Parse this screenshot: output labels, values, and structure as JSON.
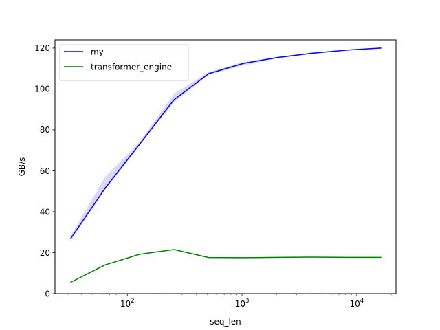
{
  "chart_data": {
    "type": "line",
    "title": "",
    "xlabel": "seq_len",
    "ylabel": "GB/s",
    "xscale": "log",
    "xlim": [
      23.4,
      22000
    ],
    "ylim": [
      0,
      124
    ],
    "x_ticks": [
      {
        "value": 100,
        "base": "10",
        "exp": "2"
      },
      {
        "value": 1000,
        "base": "10",
        "exp": "3"
      },
      {
        "value": 10000,
        "base": "10",
        "exp": "4"
      }
    ],
    "y_ticks": [
      0,
      20,
      40,
      60,
      80,
      100,
      120
    ],
    "grid": false,
    "legend": "top-left",
    "series": [
      {
        "name": "my",
        "color": "#0000ff",
        "band_color": "#0000ff",
        "x": [
          32,
          64,
          128,
          256,
          512,
          1024,
          2048,
          4096,
          8192,
          16384
        ],
        "y": [
          26.8,
          51.5,
          73.0,
          94.8,
          107.5,
          112.5,
          115.4,
          117.5,
          119.0,
          120.0
        ],
        "y_lower": [
          25.6,
          50.5,
          72.5,
          93.5,
          107.0,
          111.5,
          115.0,
          117.2,
          118.8,
          119.8
        ],
        "y_upper": [
          28.2,
          57.0,
          74.0,
          97.8,
          108.2,
          113.2,
          115.8,
          117.8,
          119.2,
          120.2
        ]
      },
      {
        "name": "transformer_engine",
        "color": "#008000",
        "x": [
          32,
          64,
          128,
          256,
          512,
          1024,
          2048,
          4096,
          8192,
          16384
        ],
        "y": [
          5.5,
          14.0,
          19.2,
          21.5,
          17.6,
          17.5,
          17.7,
          17.8,
          17.7,
          17.7
        ]
      }
    ]
  }
}
